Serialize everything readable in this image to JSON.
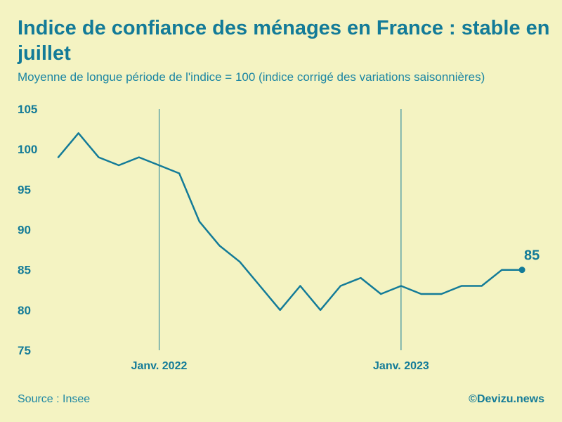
{
  "title": "Indice de confiance des ménages en France : stable en juillet",
  "subtitle": "Moyenne de longue période de l'indice = 100 (indice corrigé des variations saisonnières)",
  "source": "Source : Insee",
  "brand": "©Devizu.news",
  "colors": {
    "background": "#f4f3c2",
    "line": "#137b98",
    "text": "#137b98"
  },
  "chart_data": {
    "type": "line",
    "title": "Indice de confiance des ménages en France : stable en juillet",
    "subtitle": "Moyenne de longue période de l'indice = 100 (indice corrigé des variations saisonnières)",
    "x": [
      "2021-08",
      "2021-09",
      "2021-10",
      "2021-11",
      "2021-12",
      "2022-01",
      "2022-02",
      "2022-03",
      "2022-04",
      "2022-05",
      "2022-06",
      "2022-07",
      "2022-08",
      "2022-09",
      "2022-10",
      "2022-11",
      "2022-12",
      "2023-01",
      "2023-02",
      "2023-03",
      "2023-04",
      "2023-05",
      "2023-06",
      "2023-07"
    ],
    "series": [
      {
        "values": [
          99,
          102,
          99,
          98,
          99,
          98,
          97,
          91,
          88,
          86,
          83,
          80,
          83,
          80,
          83,
          84,
          82,
          83,
          82,
          82,
          83,
          83,
          85,
          85
        ]
      }
    ],
    "ylim": [
      75,
      105
    ],
    "yticks": [
      105,
      100,
      95,
      90,
      85,
      80,
      75
    ],
    "xtick_labels": [
      {
        "x": "2022-01",
        "label": "Janv. 2022"
      },
      {
        "x": "2023-01",
        "label": "Janv. 2023"
      }
    ],
    "end_label": "85",
    "grid": false,
    "vertical_markers": [
      "2022-01",
      "2023-01"
    ]
  }
}
